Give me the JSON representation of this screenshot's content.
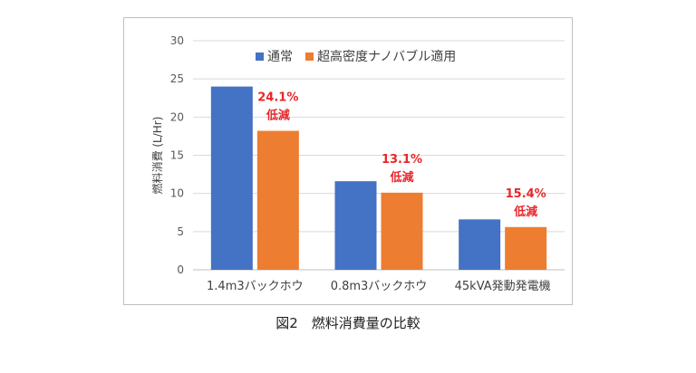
{
  "chart_data": {
    "type": "bar",
    "categories": [
      "1.4m3バックホウ",
      "0.8m3バックホウ",
      "45kVA発動発電機"
    ],
    "series": [
      {
        "name": "通常",
        "values": [
          24.0,
          11.6,
          6.6
        ],
        "color": "#4472C4"
      },
      {
        "name": "超高密度ナノバブル適用",
        "values": [
          18.2,
          10.1,
          5.6
        ],
        "color": "#ED7D31"
      }
    ],
    "annotations": [
      {
        "category_index": 0,
        "line1": "24.1%",
        "line2": "低減"
      },
      {
        "category_index": 1,
        "line1": "13.1%",
        "line2": "低減"
      },
      {
        "category_index": 2,
        "line1": "15.4%",
        "line2": "低減"
      }
    ],
    "annotation_color": "#E8272B",
    "ylabel": "燃料消費 (L/Hr)",
    "ylim": [
      0,
      30
    ],
    "yticks": [
      0,
      5,
      10,
      15,
      20,
      25,
      30
    ],
    "grid": true,
    "legend_position": "top"
  },
  "caption": "図2　燃料消費量の比較"
}
